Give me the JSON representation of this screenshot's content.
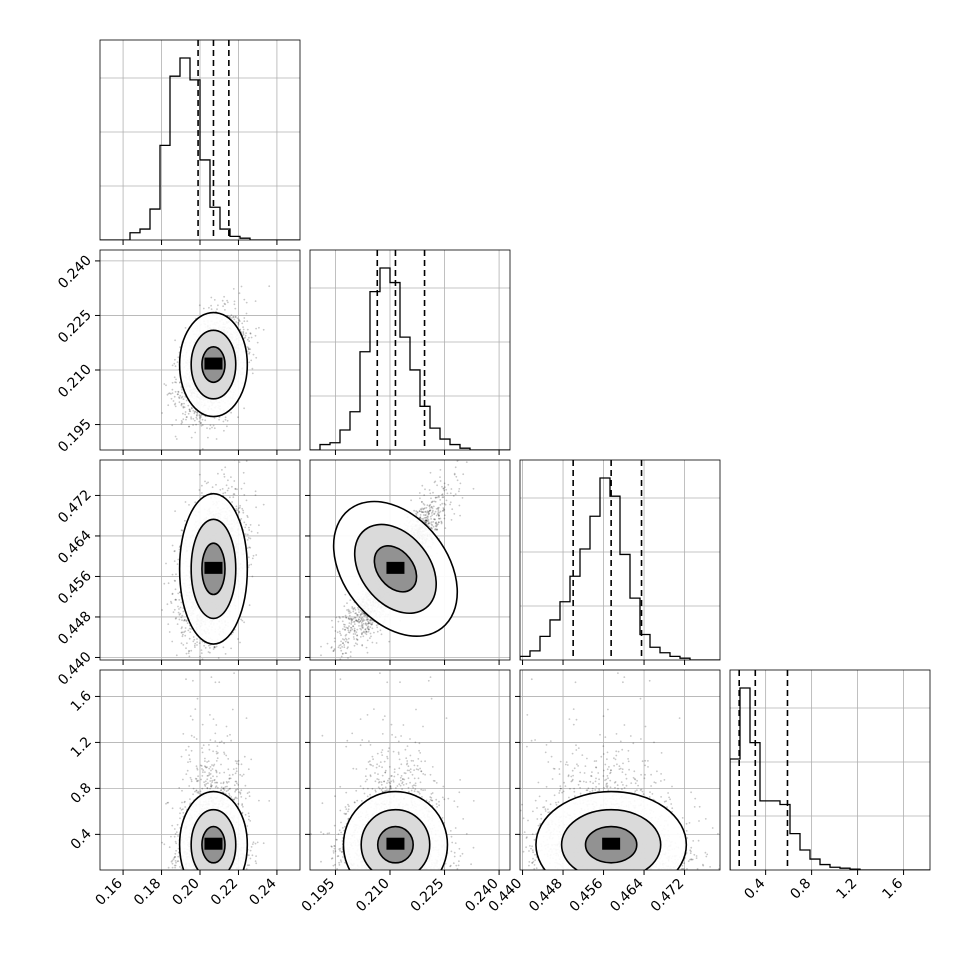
{
  "chart_data": {
    "type": "corner",
    "parameters": [
      "p0",
      "p1",
      "p2",
      "p3"
    ],
    "ranges": {
      "p0": [
        0.148,
        0.252
      ],
      "p1": [
        0.188,
        0.243
      ],
      "p2": [
        0.4395,
        0.479
      ],
      "p3": [
        0.09,
        1.83
      ]
    },
    "ticks": {
      "p0": [
        "0.16",
        "0.18",
        "0.20",
        "0.22",
        "0.24"
      ],
      "p1": [
        "0.195",
        "0.210",
        "0.225",
        "0.240"
      ],
      "p2": [
        "0.440",
        "0.448",
        "0.456",
        "0.464",
        "0.472"
      ],
      "p3": [
        "0.4",
        "0.8",
        "1.2",
        "1.6"
      ]
    },
    "tick_values": {
      "p0": [
        0.16,
        0.18,
        0.2,
        0.22,
        0.24
      ],
      "p1": [
        0.195,
        0.21,
        0.225,
        0.24
      ],
      "p2": [
        0.44,
        0.448,
        0.456,
        0.464,
        0.472
      ],
      "p3": [
        0.4,
        0.8,
        1.2,
        1.6
      ]
    },
    "quantiles": {
      "p0": [
        0.199,
        0.207,
        0.215
      ],
      "p1": [
        0.2065,
        0.2115,
        0.2195
      ],
      "p2": [
        0.45,
        0.4575,
        0.4635
      ],
      "p3": [
        0.17,
        0.31,
        0.59
      ]
    },
    "histograms": {
      "p0": [
        0,
        0,
        0,
        0.04,
        0.06,
        0.17,
        0.52,
        0.9,
        1.0,
        0.88,
        0.44,
        0.18,
        0.06,
        0.02,
        0.01,
        0,
        0,
        0,
        0,
        0
      ],
      "p1": [
        0,
        0.03,
        0.04,
        0.11,
        0.21,
        0.54,
        0.87,
        1.0,
        0.92,
        0.62,
        0.44,
        0.24,
        0.12,
        0.06,
        0.03,
        0.01,
        0,
        0,
        0,
        0
      ],
      "p2": [
        0.02,
        0.05,
        0.13,
        0.22,
        0.32,
        0.46,
        0.61,
        0.79,
        1.0,
        0.9,
        0.58,
        0.34,
        0.14,
        0.07,
        0.04,
        0.02,
        0.01,
        0,
        0,
        0
      ],
      "p3": [
        0.61,
        1.0,
        0.7,
        0.38,
        0.38,
        0.36,
        0.2,
        0.11,
        0.06,
        0.03,
        0.015,
        0.01,
        0.005,
        0,
        0,
        0,
        0,
        0,
        0,
        0
      ]
    },
    "grid": true,
    "scatter_color": "#000000",
    "density_cmap": [
      "#ffffff",
      "#000000"
    ]
  }
}
